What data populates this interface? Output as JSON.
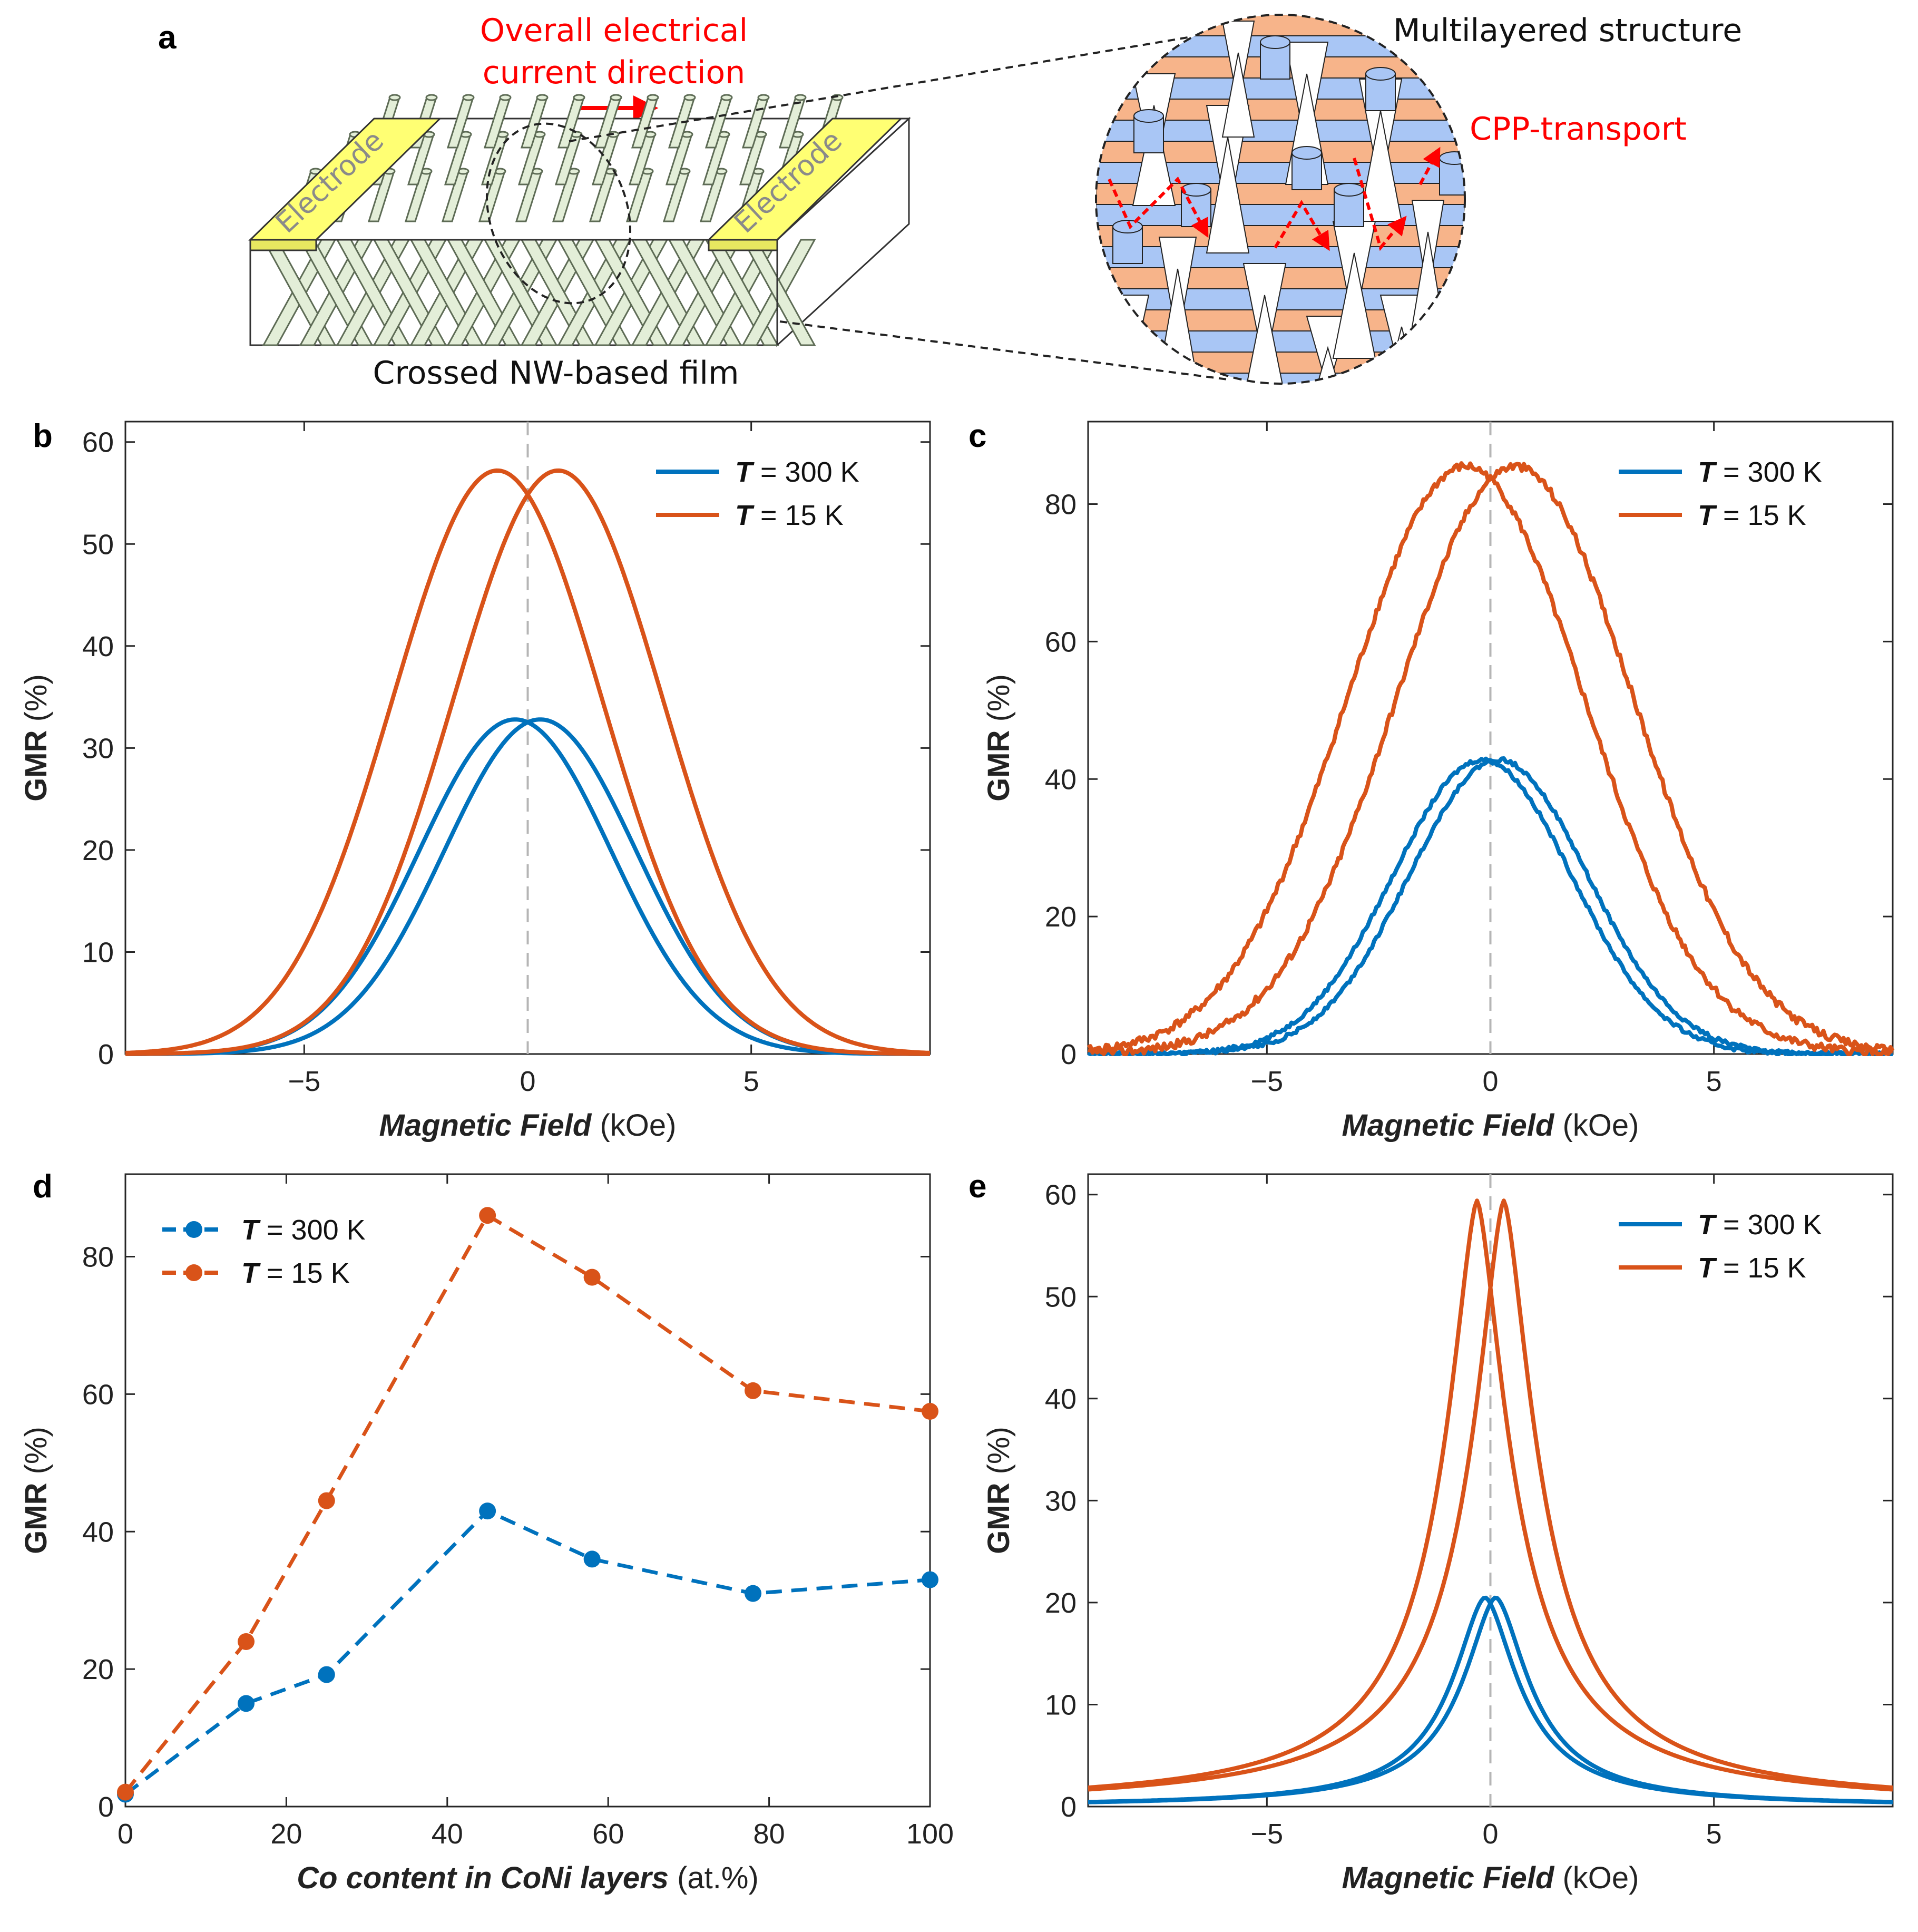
{
  "colors": {
    "blue": "#0072BD",
    "orange": "#D95319",
    "layer_blue": "#A9C6F5",
    "layer_orange": "#F7B48A",
    "nw_fill": "#E3EED8",
    "electrode": "#FFFF73",
    "red": "#FF0000"
  },
  "panel_a": {
    "letter": "a",
    "current_label_line1": "Overall electrical",
    "current_label_line2": "current direction",
    "electrode_label": "Electrode",
    "film_label": "Crossed NW-based film",
    "structure_label": "Multilayered structure",
    "transport_label": "CPP-transport"
  },
  "chart_data": [
    {
      "panel": "b",
      "type": "line",
      "xlabel": "Magnetic Field",
      "xunit": "(kOe)",
      "ylabel": "GMR (%)",
      "xlim": [
        -9,
        9
      ],
      "ylim": [
        0,
        62
      ],
      "xticks": [
        -5,
        0,
        5
      ],
      "xtick_labels": [
        "−5",
        "0",
        "5"
      ],
      "yticks": [
        0,
        10,
        20,
        30,
        40,
        50,
        60
      ],
      "ytick_labels": [
        "0",
        "10",
        "20",
        "30",
        "40",
        "50",
        "60"
      ],
      "zero_line": true,
      "legend_position": "top-right",
      "series": [
        {
          "name": "T = 300 K",
          "legend_sym": "T",
          "legend_rest": "= 300 K",
          "color": "#0072BD",
          "shape": "gauss",
          "peak": 32.8,
          "peak_pos": 0.28,
          "width": 2.15,
          "power": 2,
          "pair": true
        },
        {
          "name": "T = 15 K",
          "legend_sym": "T",
          "legend_rest": "= 15 K",
          "color": "#D95319",
          "shape": "gauss",
          "peak": 57.2,
          "peak_pos": 0.68,
          "width": 2.35,
          "power": 2,
          "pair": true
        }
      ]
    },
    {
      "panel": "c",
      "type": "line",
      "xlabel": "Magnetic Field",
      "xunit": "(kOe)",
      "ylabel": "GMR (%)",
      "xlim": [
        -9,
        9
      ],
      "ylim": [
        0,
        92
      ],
      "xticks": [
        -5,
        0,
        5
      ],
      "xtick_labels": [
        "−5",
        "0",
        "5"
      ],
      "yticks": [
        0,
        20,
        40,
        60,
        80
      ],
      "ytick_labels": [
        "0",
        "20",
        "40",
        "60",
        "80"
      ],
      "zero_line": true,
      "legend_position": "top-right",
      "series": [
        {
          "name": "T = 300 K",
          "legend_sym": "T",
          "legend_rest": "= 300 K",
          "color": "#0072BD",
          "shape": "gauss",
          "peak": 42.8,
          "peak_pos": 0.18,
          "width": 2.0,
          "power": 2,
          "pair": true,
          "noise": 0.3
        },
        {
          "name": "T = 15 K",
          "legend_sym": "T",
          "legend_rest": "= 15 K",
          "color": "#D95319",
          "shape": "gauss",
          "peak": 85.5,
          "peak_pos": 0.55,
          "width": 2.65,
          "power": 2,
          "pair": true,
          "noise": 0.6
        }
      ]
    },
    {
      "panel": "d",
      "type": "line",
      "xlabel": "Co content in CoNi layers",
      "xunit": "(at.%)",
      "ylabel": "GMR (%)",
      "xlim": [
        0,
        100
      ],
      "ylim": [
        0,
        92
      ],
      "xticks": [
        0,
        20,
        40,
        60,
        80,
        100
      ],
      "xtick_labels": [
        "0",
        "20",
        "40",
        "60",
        "80",
        "100"
      ],
      "yticks": [
        0,
        20,
        40,
        60,
        80
      ],
      "ytick_labels": [
        "0",
        "20",
        "40",
        "60",
        "80"
      ],
      "zero_line": false,
      "legend_position": "top-left",
      "x": [
        0,
        15,
        25,
        45,
        58,
        78,
        100
      ],
      "series": [
        {
          "name": "T = 300 K",
          "legend_sym": "T",
          "legend_rest": "= 300 K",
          "color": "#0072BD",
          "values": [
            1.8,
            15,
            19.2,
            43,
            36,
            31,
            33
          ]
        },
        {
          "name": "T = 15 K",
          "legend_sym": "T",
          "legend_rest": "= 15 K",
          "color": "#D95319",
          "values": [
            2.1,
            24,
            44.5,
            86,
            77,
            60.5,
            57.5
          ]
        }
      ]
    },
    {
      "panel": "e",
      "type": "line",
      "xlabel": "Magnetic Field",
      "xunit": "(kOe)",
      "ylabel": "GMR (%)",
      "xlim": [
        -9,
        9
      ],
      "ylim": [
        0,
        62
      ],
      "xticks": [
        -5,
        0,
        5
      ],
      "xtick_labels": [
        "−5",
        "0",
        "5"
      ],
      "yticks": [
        0,
        10,
        20,
        30,
        40,
        50,
        60
      ],
      "ytick_labels": [
        "0",
        "10",
        "20",
        "30",
        "40",
        "50",
        "60"
      ],
      "zero_line": true,
      "legend_position": "top-right",
      "series": [
        {
          "name": "T = 300 K",
          "legend_sym": "T",
          "legend_rest": "= 300 K",
          "color": "#0072BD",
          "shape": "lorentz",
          "peak": 20.5,
          "peak_pos": 0.12,
          "width": 0.95,
          "power": 1.7,
          "pair": true
        },
        {
          "name": "T = 15 K",
          "legend_sym": "T",
          "legend_rest": "= 15 K",
          "color": "#D95319",
          "shape": "lorentz",
          "peak": 59.4,
          "peak_pos": 0.3,
          "width": 0.95,
          "power": 1.55,
          "pair": true
        }
      ]
    }
  ]
}
